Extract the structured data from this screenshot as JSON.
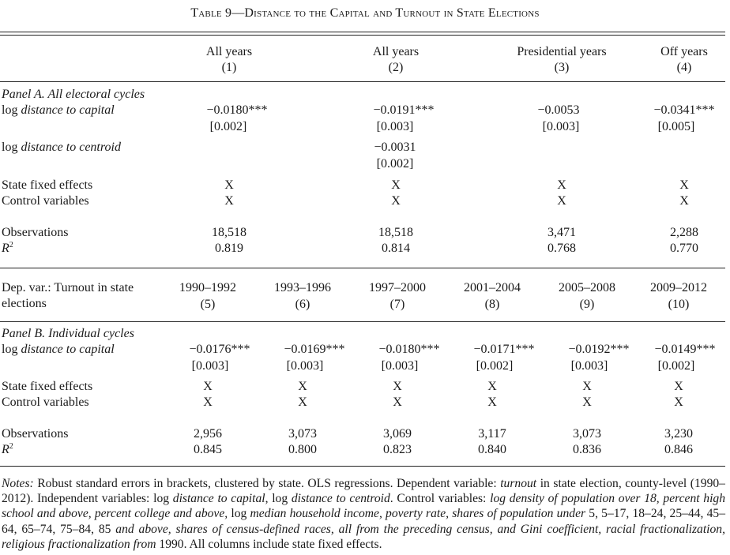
{
  "title": "Table 9—Distance to the Capital and Turnout in State Elections",
  "panel_a": {
    "headers": [
      {
        "label": "All years",
        "num": "(1)"
      },
      {
        "label": "All years",
        "num": "(2)"
      },
      {
        "label": "Presidential years",
        "num": "(3)"
      },
      {
        "label": "Off years",
        "num": "(4)"
      }
    ],
    "name": "Panel A. All electoral cycles",
    "rows": {
      "log_distance_capital": {
        "label_prefix": "log ",
        "label_italic": "distance to capital",
        "coef": [
          "−0.0180***",
          "−0.0191***",
          "−0.0053",
          "−0.0341***"
        ],
        "se": [
          "[0.002]",
          "[0.003]",
          "[0.003]",
          "[0.005]"
        ]
      },
      "log_distance_centroid": {
        "label_prefix": "log ",
        "label_italic": "distance to centroid",
        "coef": "−0.0031",
        "se": "[0.002]"
      },
      "state_fe": {
        "label": "State fixed effects",
        "vals": [
          "X",
          "X",
          "X",
          "X"
        ]
      },
      "controls": {
        "label": "Control variables",
        "vals": [
          "X",
          "X",
          "X",
          "X"
        ]
      },
      "observations": {
        "label": "Observations",
        "vals": [
          "18,518",
          "18,518",
          "3,471",
          "2,288"
        ]
      },
      "r2": {
        "label": "R",
        "sup": "2",
        "vals": [
          "0.819",
          "0.814",
          "0.768",
          "0.770"
        ]
      }
    }
  },
  "panel_b": {
    "dep_label_1": "Dep. var.: Turnout in state",
    "dep_label_2": "elections",
    "headers": [
      {
        "label": "1990–1992",
        "num": "(5)"
      },
      {
        "label": "1993–1996",
        "num": "(6)"
      },
      {
        "label": "1997–2000",
        "num": "(7)"
      },
      {
        "label": "2001–2004",
        "num": "(8)"
      },
      {
        "label": "2005–2008",
        "num": "(9)"
      },
      {
        "label": "2009–2012",
        "num": "(10)"
      }
    ],
    "name": "Panel B. Individual cycles",
    "rows": {
      "log_distance_capital": {
        "label_prefix": "log ",
        "label_italic": "distance to capital",
        "coef": [
          "−0.0176***",
          "−0.0169***",
          "−0.0180***",
          "−0.0171***",
          "−0.0192***",
          "−0.0149***"
        ],
        "se": [
          "[0.003]",
          "[0.003]",
          "[0.003]",
          "[0.002]",
          "[0.003]",
          "[0.002]"
        ]
      },
      "state_fe": {
        "label": "State fixed effects",
        "vals": [
          "X",
          "X",
          "X",
          "X",
          "X",
          "X"
        ]
      },
      "controls": {
        "label": "Control variables",
        "vals": [
          "X",
          "X",
          "X",
          "X",
          "X",
          "X"
        ]
      },
      "observations": {
        "label": "Observations",
        "vals": [
          "2,956",
          "3,073",
          "3,069",
          "3,117",
          "3,073",
          "3,230"
        ]
      },
      "r2": {
        "label": "R",
        "sup": "2",
        "vals": [
          "0.845",
          "0.800",
          "0.823",
          "0.840",
          "0.836",
          "0.846"
        ]
      }
    }
  },
  "notes": {
    "lead": "Notes:",
    "s1": " Robust standard errors in brackets, clustered by state. OLS regressions. Dependent variable: ",
    "s1i": "turnout",
    "s2": " in state election, county-level (1990–2012). Independent variables: log ",
    "s2i": "distance to capital",
    "s3": ", log ",
    "s3i": "distance to centroid",
    "s4": ". Control variables: ",
    "s4i": "log density of population over 18, percent high school and above, percent college and above, ",
    "s5": "log ",
    "s5i": "median household income, poverty rate, shares of population under ",
    "s6": "5, 5–17, 18–24, 25–44, 45–64, 65–74, 75–84, 85 ",
    "s6i": "and above, shares of census-defined races, all from the preceding census, and Gini coefficient, racial fractionalization, religious fractionalization from ",
    "s7": "1990",
    "s8": ". All columns include state fixed effects."
  }
}
